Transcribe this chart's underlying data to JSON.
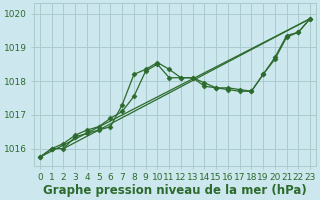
{
  "xlabel": "Graphe pression niveau de la mer (hPa)",
  "xlim": [
    -0.5,
    23.5
  ],
  "ylim": [
    1015.5,
    1020.3
  ],
  "yticks": [
    1016,
    1017,
    1018,
    1019,
    1020
  ],
  "xticks": [
    0,
    1,
    2,
    3,
    4,
    5,
    6,
    7,
    8,
    9,
    10,
    11,
    12,
    13,
    14,
    15,
    16,
    17,
    18,
    19,
    20,
    21,
    22,
    23
  ],
  "bg_color": "#cce8ee",
  "grid_color": "#aacccc",
  "line_color": "#2d6a2d",
  "series_with_markers": [
    {
      "x": [
        0,
        1,
        2,
        3,
        4,
        5,
        6,
        7,
        8,
        9,
        10,
        11,
        12,
        13,
        14,
        15,
        16,
        17,
        18,
        19,
        20,
        21,
        22,
        23
      ],
      "y": [
        1015.75,
        1016.0,
        1016.0,
        1016.35,
        1016.45,
        1016.55,
        1016.65,
        1017.3,
        1018.2,
        1018.35,
        1018.55,
        1018.35,
        1018.1,
        1018.1,
        1017.95,
        1017.8,
        1017.75,
        1017.7,
        1017.7,
        1018.2,
        1018.65,
        1019.3,
        1019.45,
        1019.85
      ]
    },
    {
      "x": [
        0,
        1,
        2,
        3,
        4,
        5,
        6,
        7,
        8,
        9,
        10,
        11,
        12,
        13,
        14,
        15,
        16,
        17,
        18,
        19,
        20,
        21,
        22,
        23
      ],
      "y": [
        1015.75,
        1016.0,
        1016.15,
        1016.4,
        1016.55,
        1016.65,
        1016.9,
        1017.1,
        1017.55,
        1018.3,
        1018.5,
        1018.1,
        1018.1,
        1018.1,
        1017.85,
        1017.8,
        1017.8,
        1017.75,
        1017.7,
        1018.2,
        1018.7,
        1019.35,
        1019.45,
        1019.85
      ]
    }
  ],
  "trend_lines": [
    {
      "x": [
        0,
        23
      ],
      "y": [
        1015.75,
        1019.85
      ]
    },
    {
      "x": [
        2,
        23
      ],
      "y": [
        1016.0,
        1019.85
      ]
    }
  ],
  "marker": "D",
  "markersize": 2.5,
  "linewidth": 0.9,
  "font_color": "#2d6a2d",
  "tick_fontsize": 6.5,
  "label_fontsize": 8.5
}
